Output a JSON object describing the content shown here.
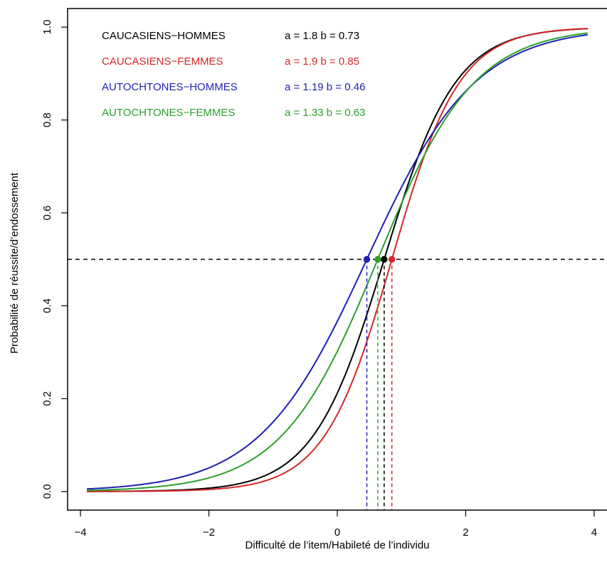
{
  "chart_data": {
    "type": "line",
    "xlabel": "Difficulté de l’item/Habileté de l’individu",
    "ylabel": "Probabilité de réussite/d’endossement",
    "xlim": [
      -4.2,
      4.2
    ],
    "ylim": [
      -0.04,
      1.04
    ],
    "x_ticks": [
      -4,
      -2,
      0,
      2,
      4
    ],
    "x_tick_labels": [
      "−4",
      "−2",
      "0",
      "2",
      "4"
    ],
    "y_ticks": [
      0.0,
      0.2,
      0.4,
      0.6,
      0.8,
      1.0
    ],
    "y_tick_labels": [
      "0.0",
      "0.2",
      "0.4",
      "0.6",
      "0.8",
      "1.0"
    ],
    "grid": false,
    "legend_position": "top-left",
    "curve_x_range": [
      -3.9,
      3.9
    ],
    "reference_line_y": 0.5,
    "series": [
      {
        "name": "CAUCASIENS−HOMMES",
        "params_label": "a = 1.8   b =  0.73",
        "a": 1.8,
        "b": 0.73,
        "color": "#000000"
      },
      {
        "name": "CAUCASIENS−FEMMES",
        "params_label": "a = 1.9   b =  0.85",
        "a": 1.9,
        "b": 0.85,
        "color": "#d62728"
      },
      {
        "name": "AUTOCHTONES−HOMMES",
        "params_label": "a = 1.19   b =  0.46",
        "a": 1.19,
        "b": 0.46,
        "color": "#1f1fb4"
      },
      {
        "name": "AUTOCHTONES−FEMMES",
        "params_label": "a = 1.33   b =  0.63",
        "a": 1.33,
        "b": 0.63,
        "color": "#2ca02c"
      }
    ]
  }
}
